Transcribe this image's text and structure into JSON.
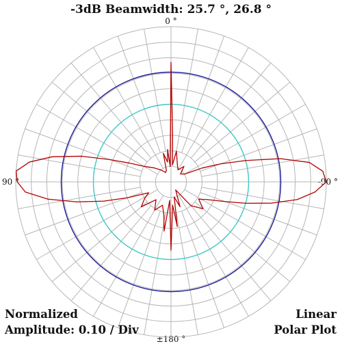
{
  "header": {
    "title": "-3dB Beamwidth: 25.7 °, 26.8 °"
  },
  "angle_labels": {
    "top": "0 °",
    "left": "90 °",
    "right": "-90 °",
    "bottom": "±180 °"
  },
  "corner_text": {
    "left_line1": "Normalized",
    "left_line2": "Amplitude: 0.10 / Div",
    "right_line1": "Linear",
    "right_line2": "Polar Plot"
  },
  "colors": {
    "grid": "#b5b5b5",
    "pattern": "#b00000",
    "ring_outer": "#1a1a9a",
    "ring_inner": "#40c8c8"
  },
  "chart_data": {
    "type": "polar",
    "title": "-3dB Beamwidth: 25.7 °, 26.8 °",
    "scale": "linear",
    "r_range": [
      0,
      1
    ],
    "r_step": 0.1,
    "angle_step_deg": 10,
    "zero_direction": "top",
    "grid": true,
    "reference_circles": [
      {
        "r": 0.707,
        "color": "#1a1a9a"
      },
      {
        "r": 0.5,
        "color": "#40c8c8"
      }
    ],
    "series": [
      {
        "angles_deg": [
          0,
          3,
          6,
          10,
          15,
          22,
          30,
          40,
          50,
          60,
          66,
          70,
          74,
          78,
          82,
          86,
          90,
          94,
          98,
          102,
          106,
          110,
          116,
          122,
          130,
          140,
          150,
          160,
          168,
          172,
          176,
          180,
          184,
          188,
          192,
          200,
          210,
          220,
          230,
          238,
          244,
          250,
          254,
          258,
          262,
          266,
          270,
          274,
          278,
          282,
          286,
          290,
          294,
          300,
          310,
          320,
          330,
          340,
          350,
          355,
          358
        ],
        "values": [
          0.77,
          0.1,
          0.21,
          0.13,
          0.19,
          0.08,
          0.07,
          0.1,
          0.14,
          0.2,
          0.3,
          0.42,
          0.6,
          0.78,
          0.92,
          1.0,
          0.99,
          0.94,
          0.8,
          0.62,
          0.45,
          0.3,
          0.16,
          0.2,
          0.25,
          0.15,
          0.21,
          0.16,
          0.22,
          0.32,
          0.12,
          0.44,
          0.15,
          0.29,
          0.1,
          0.17,
          0.06,
          0.2,
          0.27,
          0.21,
          0.26,
          0.37,
          0.5,
          0.66,
          0.82,
          0.93,
          1.0,
          0.98,
          0.9,
          0.72,
          0.5,
          0.34,
          0.22,
          0.1,
          0.08,
          0.13,
          0.09,
          0.12,
          0.2,
          0.11,
          0.3
        ]
      }
    ]
  }
}
